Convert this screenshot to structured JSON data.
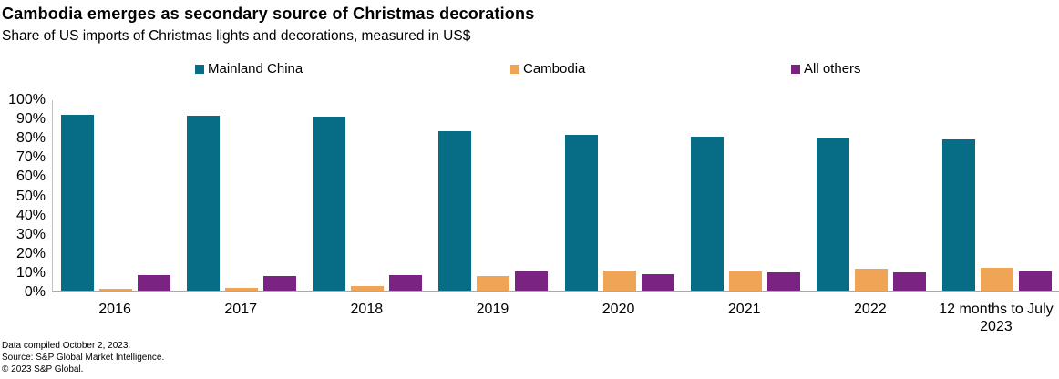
{
  "header": {
    "title": "Cambodia emerges as secondary source of Christmas decorations",
    "subtitle": "Share of US imports of Christmas lights and decorations, measured in US$"
  },
  "chart_data": {
    "type": "bar",
    "title": "Cambodia emerges as secondary source of Christmas decorations",
    "subtitle": "Share of US imports of Christmas lights and decorations, measured in US$",
    "categories": [
      "2016",
      "2017",
      "2018",
      "2019",
      "2020",
      "2021",
      "2022",
      "12 months to July 2023"
    ],
    "series": [
      {
        "name": "Mainland China",
        "color": "#076D87",
        "values": [
          91.5,
          91,
          90.5,
          83,
          81,
          80,
          79,
          78.5
        ]
      },
      {
        "name": "Cambodia",
        "color": "#F0A455",
        "values": [
          1,
          1.5,
          2.5,
          7.5,
          10.5,
          10,
          11.5,
          12
        ]
      },
      {
        "name": "All others",
        "color": "#7A2382",
        "values": [
          8,
          7.5,
          8,
          10,
          8.5,
          9.5,
          9.5,
          10
        ]
      }
    ],
    "xlabel": "",
    "ylabel": "",
    "ylim": [
      0,
      100
    ],
    "yticks": [
      0,
      10,
      20,
      30,
      40,
      50,
      60,
      70,
      80,
      90,
      100
    ],
    "ytick_suffix": "%",
    "grid": false,
    "legend_position": "top",
    "axis_line_color": "#a9a9a9"
  },
  "footer": {
    "line1": "Data compiled October 2, 2023.",
    "line2": "Source: S&P Global Market Intelligence.",
    "line3": "© 2023 S&P Global."
  }
}
